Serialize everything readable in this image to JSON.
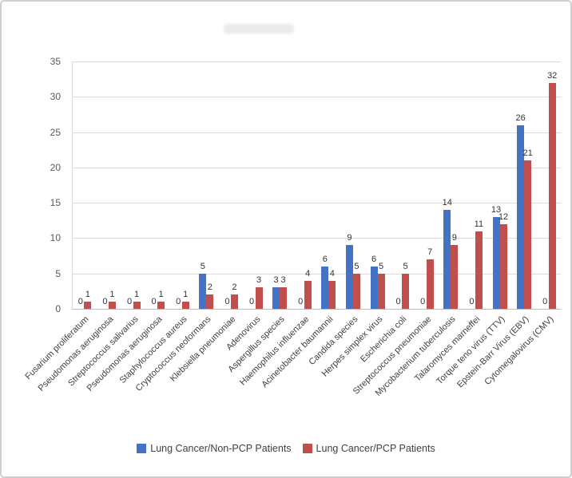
{
  "chart_data": {
    "type": "bar",
    "title": "",
    "xlabel": "",
    "ylabel": "",
    "ylim": [
      0,
      35
    ],
    "yticks": [
      0,
      5,
      10,
      15,
      20,
      25,
      30,
      35
    ],
    "grid": true,
    "legend_position": "bottom",
    "data_labels": true,
    "categories": [
      "Fusarium proliferatum",
      "Pseudomonas aeruginosa",
      "Streptococcus salivarius",
      "Pseudomonas aeruginosa",
      "Staphylococcus aureus",
      "Cryptococcus neoformans",
      "Klebsiella pneumoniae",
      "Adenovirus",
      "Aspergillus species",
      "Haemophilus influenzae",
      "Acinetobacter baumannii",
      "Candida species",
      "Herpes simplex virus",
      "Escherichia coli",
      "Streptococcus pneumoniae",
      "Mycobacterium tuberculosis",
      "Talaromyces marneffei",
      "Torque teno virus (TTV)",
      "Epstein-Barr Virus (EBV)",
      "Cytomegalovirus (CMV)"
    ],
    "series": [
      {
        "name": "Lung Cancer/Non-PCP Patients",
        "color": "#4472c4",
        "values": [
          0,
          0,
          0,
          0,
          0,
          5,
          0,
          0,
          3,
          0,
          6,
          9,
          6,
          0,
          0,
          14,
          0,
          13,
          26,
          0
        ]
      },
      {
        "name": "Lung Cancer/PCP Patients",
        "color": "#c0504d",
        "values": [
          1,
          1,
          1,
          1,
          1,
          2,
          2,
          3,
          3,
          4,
          4,
          5,
          5,
          5,
          7,
          9,
          11,
          12,
          21,
          32
        ]
      }
    ]
  }
}
